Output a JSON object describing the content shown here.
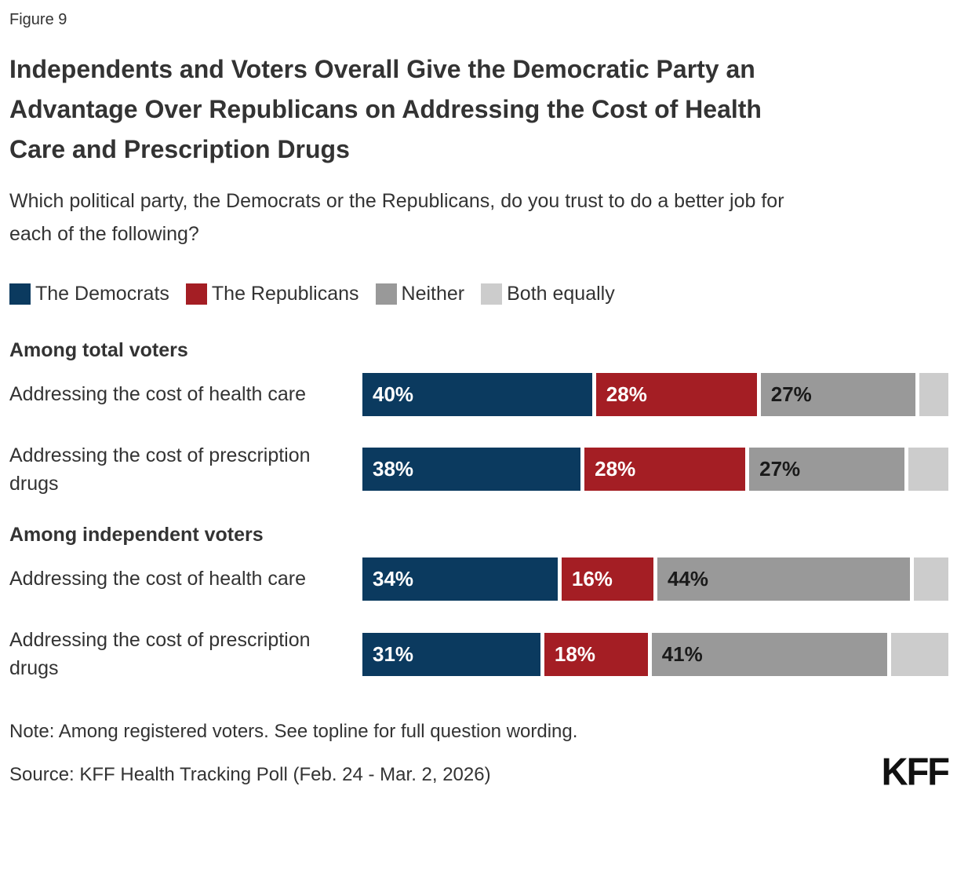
{
  "figure_label": "Figure 9",
  "title": "Independents and Voters Overall Give the Democratic Party an Advantage Over Republicans on Addressing the Cost of Health Care and Prescription Drugs",
  "subtitle": "Which political party, the Democrats or the Republicans, do you trust to do a better job for each of the following?",
  "note": "Note: Among registered voters. See topline for full question wording.",
  "source": "Source: KFF Health Tracking Poll (Feb. 24 - Mar. 2, 2026)",
  "logo_text": "KFF",
  "colors": {
    "democrats_blue": "#0B3A5F",
    "republicans_red": "#A41E24",
    "neither_gray": "#999999",
    "both_equally_light_gray": "#CCCCCC",
    "text": "#333333",
    "value_label_on_light": "#1A1A1A",
    "value_label_on_dark": "#FFFFFF"
  },
  "chart_data": {
    "type": "bar",
    "orientation": "horizontal",
    "stacked": true,
    "unit": "%",
    "axis": "none",
    "grid": false,
    "legend_position": "top",
    "series": [
      {
        "name": "The Democrats",
        "color": "#0B3A5F",
        "text_color": "#FFFFFF",
        "show_value_label": true
      },
      {
        "name": "The Republicans",
        "color": "#A41E24",
        "text_color": "#FFFFFF",
        "show_value_label": true
      },
      {
        "name": "Neither",
        "color": "#999999",
        "text_color": "#1A1A1A",
        "show_value_label": true
      },
      {
        "name": "Both equally",
        "color": "#CCCCCC",
        "text_color": "#1A1A1A",
        "show_value_label": false
      }
    ],
    "groups": [
      {
        "heading": "Among total voters",
        "rows": [
          {
            "category": "Addressing the cost of health care",
            "values": [
              40,
              28,
              27,
              5
            ]
          },
          {
            "category": "Addressing the cost of prescription drugs",
            "values": [
              38,
              28,
              27,
              7
            ]
          }
        ]
      },
      {
        "heading": "Among independent voters",
        "rows": [
          {
            "category": "Addressing the cost of health care",
            "values": [
              34,
              16,
              44,
              6
            ]
          },
          {
            "category": "Addressing the cost of prescription drugs",
            "values": [
              31,
              18,
              41,
              10
            ]
          }
        ]
      }
    ],
    "value_label_format": "{value}%",
    "value_labels_hidden_for": [
      "Both equally"
    ]
  }
}
